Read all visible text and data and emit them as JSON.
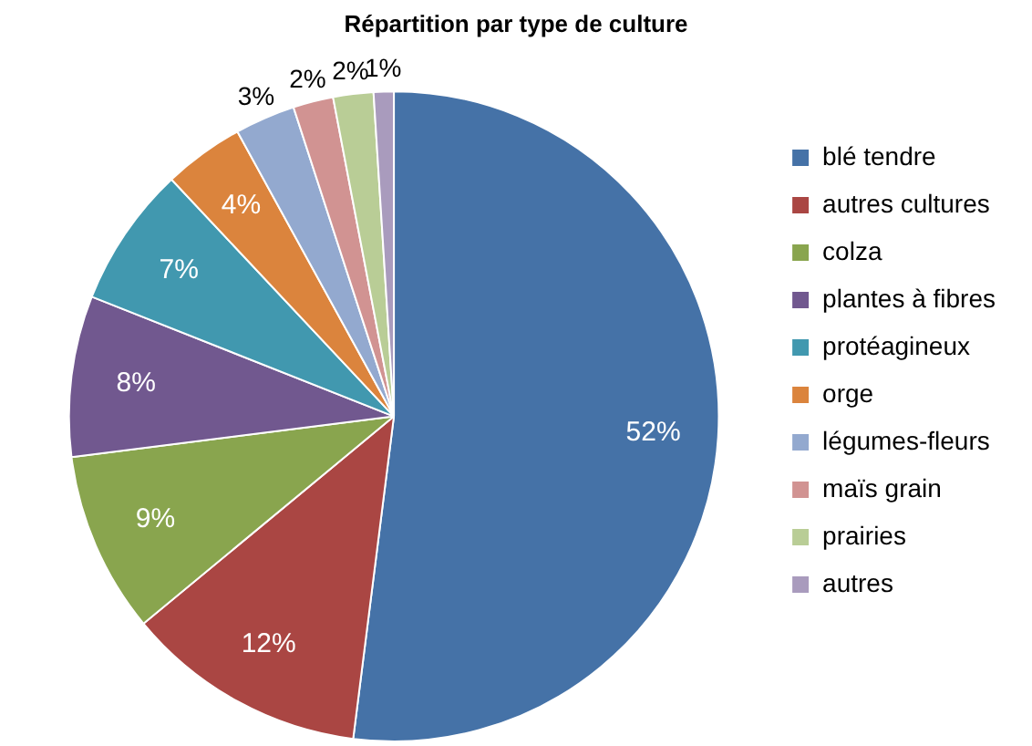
{
  "chart_data": {
    "type": "pie",
    "title": "Répartition par type de culture",
    "categories": [
      "blé tendre",
      "autres cultures",
      "colza",
      "plantes à fibres",
      "protéagineux",
      "orge",
      "légumes-fleurs",
      "maïs grain",
      "prairies",
      "autres"
    ],
    "values": [
      52,
      12,
      9,
      8,
      7,
      4,
      3,
      2,
      2,
      1
    ],
    "colors": [
      "#4572a7",
      "#aa4643",
      "#89a54e",
      "#71588f",
      "#4198af",
      "#db843d",
      "#93a9cf",
      "#d19392",
      "#b9cd96",
      "#a99bbd"
    ],
    "value_labels": [
      "52%",
      "12%",
      "9%",
      "8%",
      "7%",
      "4%",
      "3%",
      "2%",
      "2%",
      "1%"
    ],
    "legend": "right"
  }
}
